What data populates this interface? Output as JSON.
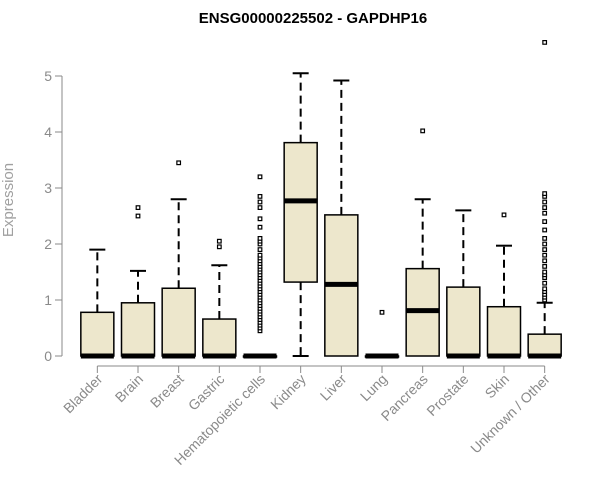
{
  "chart_data": {
    "type": "boxplot",
    "title": "ENSG00000225502 - GAPDHP16",
    "ylabel": "Expression",
    "xlabel": "",
    "ylim": [
      0,
      5.6
    ],
    "yticks": [
      0,
      1,
      2,
      3,
      4,
      5
    ],
    "grid": false,
    "legend": "none",
    "colors": {
      "box_fill": "#ede7cc",
      "box_stroke": "#000000",
      "axis": "#8a8a8a",
      "outlier": "#000000"
    },
    "categories": [
      "Bladder",
      "Brain",
      "Breast",
      "Gastric",
      "Hematopoietic cells",
      "Kidney",
      "Liver",
      "Lung",
      "Pancreas",
      "Prostate",
      "Skin",
      "Unknown / Other"
    ],
    "boxes": [
      {
        "category": "Bladder",
        "min": 0,
        "q1": 0,
        "median": 0,
        "q3": 0.78,
        "max": 1.9,
        "outliers": []
      },
      {
        "category": "Brain",
        "min": 0,
        "q1": 0,
        "median": 0,
        "q3": 0.95,
        "max": 1.52,
        "outliers": [
          2.5,
          2.65
        ]
      },
      {
        "category": "Breast",
        "min": 0,
        "q1": 0,
        "median": 0,
        "q3": 1.21,
        "max": 2.8,
        "outliers": [
          3.45
        ]
      },
      {
        "category": "Gastric",
        "min": 0,
        "q1": 0,
        "median": 0,
        "q3": 0.66,
        "max": 1.62,
        "outliers": [
          1.95,
          2.05
        ]
      },
      {
        "category": "Hematopoietic cells",
        "min": 0,
        "q1": 0,
        "median": 0,
        "q3": 0,
        "max": 0,
        "outliers": [
          0.45,
          0.5,
          0.55,
          0.6,
          0.65,
          0.7,
          0.75,
          0.8,
          0.85,
          0.9,
          0.95,
          1.0,
          1.05,
          1.1,
          1.15,
          1.2,
          1.25,
          1.3,
          1.35,
          1.4,
          1.45,
          1.5,
          1.55,
          1.6,
          1.65,
          1.7,
          1.75,
          1.8,
          1.9,
          2.0,
          2.05,
          2.1,
          2.3,
          2.45,
          2.65,
          2.75,
          2.85,
          3.2
        ]
      },
      {
        "category": "Kidney",
        "min": 0,
        "q1": 1.32,
        "median": 2.77,
        "q3": 3.81,
        "max": 5.05,
        "outliers": []
      },
      {
        "category": "Liver",
        "min": 0,
        "q1": 0,
        "median": 1.28,
        "q3": 2.52,
        "max": 4.92,
        "outliers": []
      },
      {
        "category": "Lung",
        "min": 0,
        "q1": 0,
        "median": 0,
        "q3": 0,
        "max": 0,
        "outliers": [
          0.78
        ]
      },
      {
        "category": "Pancreas",
        "min": 0,
        "q1": 0,
        "median": 0.81,
        "q3": 1.56,
        "max": 2.8,
        "outliers": [
          4.02
        ]
      },
      {
        "category": "Prostate",
        "min": 0,
        "q1": 0,
        "median": 0,
        "q3": 1.23,
        "max": 2.6,
        "outliers": []
      },
      {
        "category": "Skin",
        "min": 0,
        "q1": 0,
        "median": 0,
        "q3": 0.88,
        "max": 1.97,
        "outliers": [
          2.52
        ]
      },
      {
        "category": "Unknown / Other",
        "min": 0,
        "q1": 0,
        "median": 0,
        "q3": 0.39,
        "max": 0.95,
        "outliers": [
          1.0,
          1.05,
          1.1,
          1.15,
          1.2,
          1.3,
          1.4,
          1.45,
          1.5,
          1.6,
          1.7,
          1.8,
          1.9,
          2.0,
          2.1,
          2.25,
          2.4,
          2.55,
          2.65,
          2.75,
          2.85,
          2.9,
          5.6
        ]
      }
    ]
  }
}
